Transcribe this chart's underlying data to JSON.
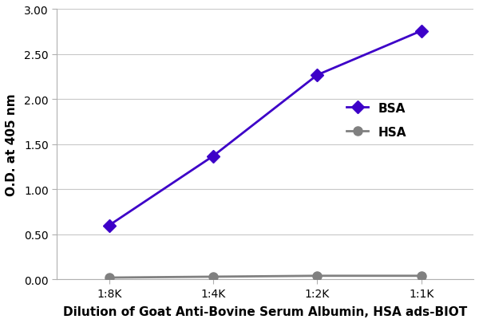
{
  "x_labels": [
    "1:8K",
    "1:4K",
    "1:2K",
    "1:1K"
  ],
  "x_values": [
    0,
    1,
    2,
    3
  ],
  "bsa_values": [
    0.6,
    1.37,
    2.27,
    2.76
  ],
  "hsa_values": [
    0.02,
    0.03,
    0.04,
    0.04
  ],
  "bsa_color": "#3d00c8",
  "hsa_color": "#808080",
  "bsa_label": "BSA",
  "hsa_label": "HSA",
  "ylabel": "O.D. at 405 nm",
  "xlabel": "Dilution of Goat Anti-Bovine Serum Albumin, HSA ads-BIOT",
  "ylim": [
    0.0,
    3.0
  ],
  "yticks": [
    0.0,
    0.5,
    1.0,
    1.5,
    2.0,
    2.5,
    3.0
  ],
  "background_color": "#ffffff",
  "grid_color": "#c8c8c8",
  "line_width": 2.0,
  "bsa_marker_size": 8,
  "hsa_marker_size": 8,
  "bsa_marker_style": "D",
  "hsa_marker_style": "o",
  "tick_fontsize": 10,
  "label_fontsize": 11,
  "legend_fontsize": 11
}
